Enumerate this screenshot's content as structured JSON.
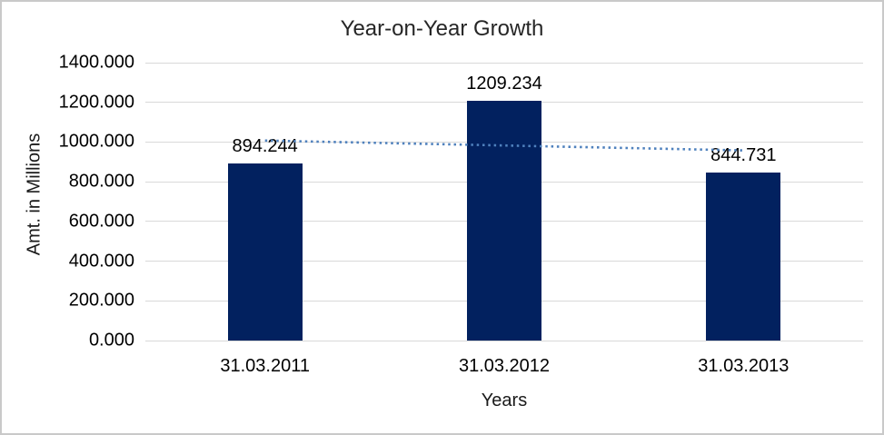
{
  "frame": {
    "background": "#ffffff",
    "border_color": "#c9c9c9"
  },
  "chart_data": {
    "type": "bar",
    "title": "Year-on-Year Growth",
    "xlabel": "Years",
    "ylabel": "Amt. in Millions",
    "categories": [
      "31.03.2011",
      "31.03.2012",
      "31.03.2013"
    ],
    "values": [
      894.244,
      1209.234,
      844.731
    ],
    "data_labels": [
      "894.244",
      "1209.234",
      "844.731"
    ],
    "ylim": [
      0,
      1400
    ],
    "ytick_step": 200,
    "ytick_labels": [
      "0.000",
      "200.000",
      "400.000",
      "600.000",
      "800.000",
      "1000.000",
      "1200.000",
      "1400.000"
    ],
    "grid": true,
    "legend_position": "none",
    "bar_color": "#02215f",
    "gridline_color": "#d9d9d9",
    "trendline": {
      "kind": "linear",
      "style": "dotted",
      "color": "#4f81bd"
    }
  }
}
